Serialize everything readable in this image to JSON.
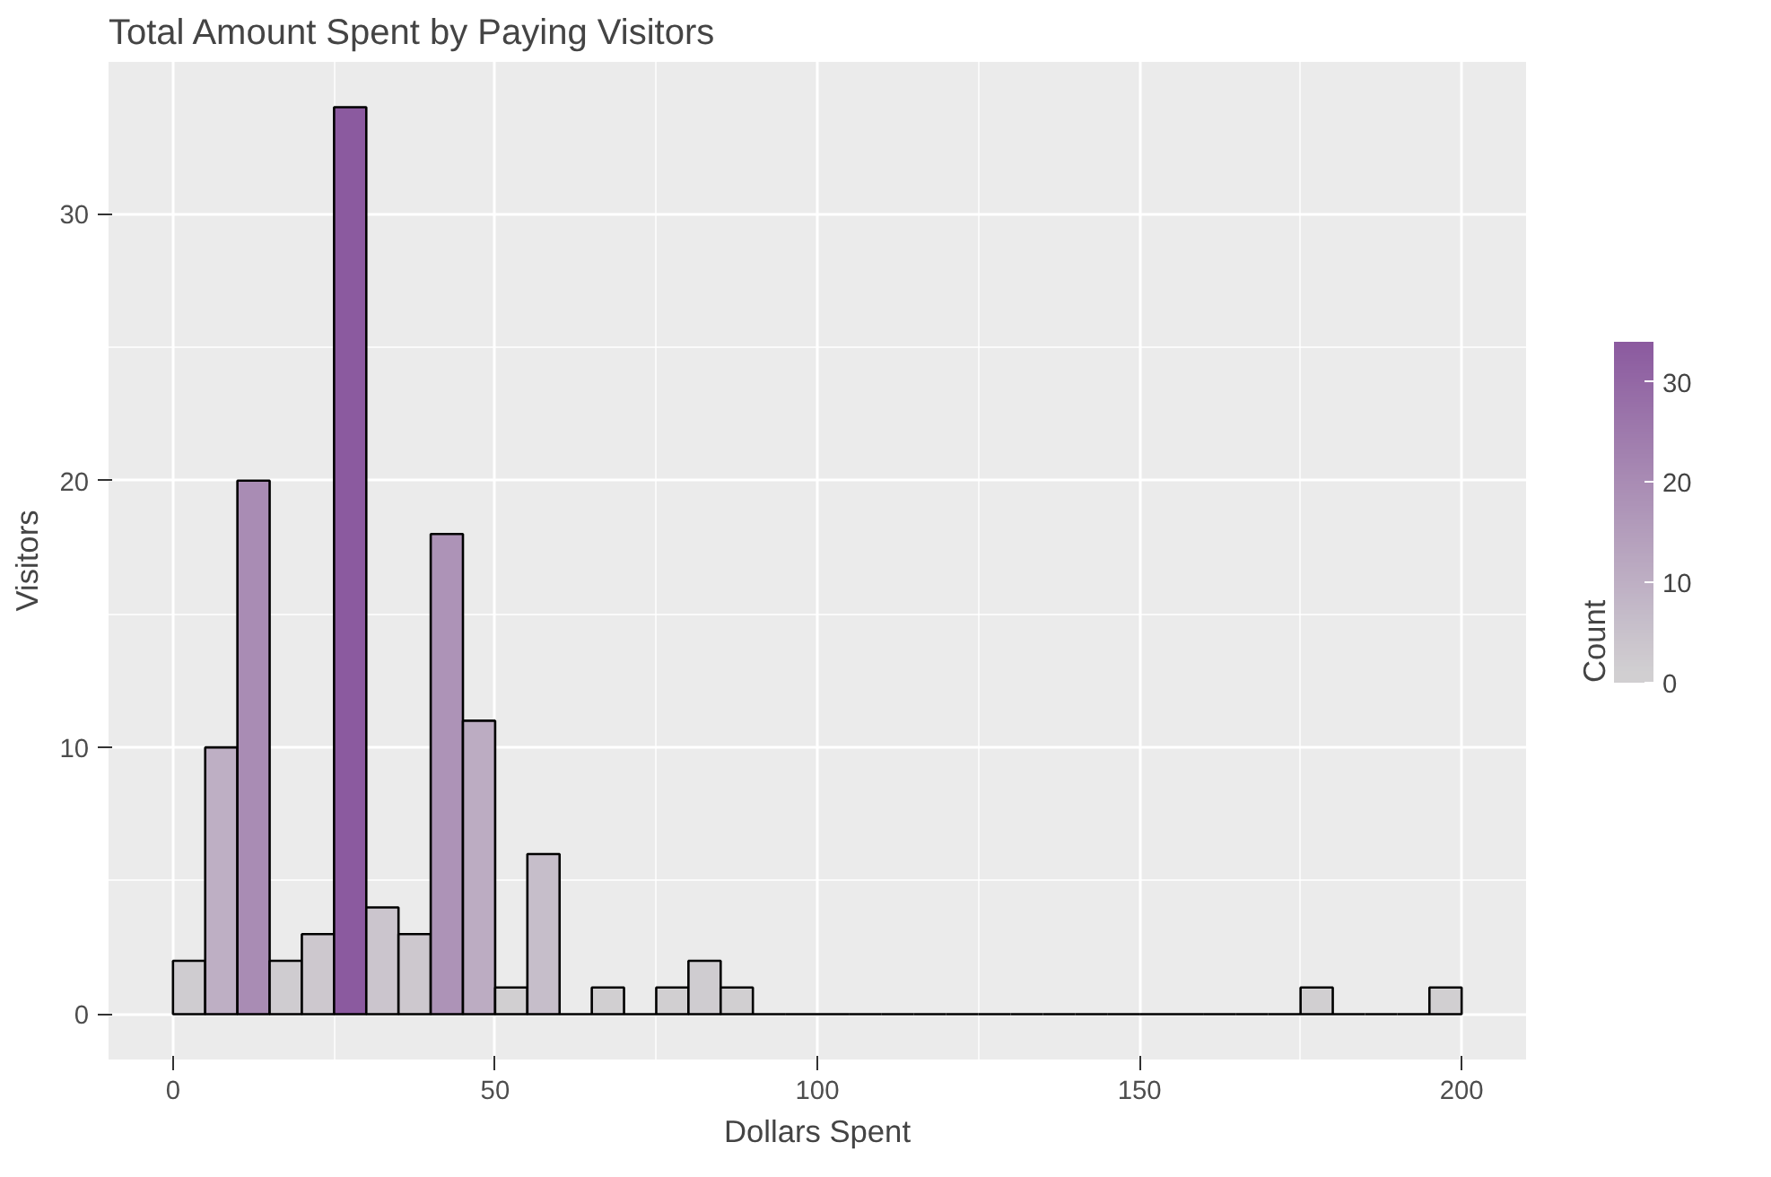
{
  "chart_data": {
    "type": "histogram",
    "title": "Total Amount Spent by Paying Visitors",
    "xlabel": "Dollars Spent",
    "ylabel": "Visitors",
    "clabel": "Count",
    "bins": [
      0,
      5,
      10,
      15,
      20,
      25,
      30,
      35,
      40,
      45,
      50,
      55,
      60,
      65,
      70,
      75,
      80,
      85,
      90,
      95,
      100,
      105,
      110,
      115,
      120,
      125,
      130,
      135,
      140,
      145,
      150,
      155,
      160,
      165,
      170,
      175,
      180,
      185,
      190,
      195,
      200
    ],
    "values": [
      2,
      10,
      20,
      2,
      3,
      34,
      4,
      3,
      18,
      11,
      1,
      6,
      0,
      1,
      0,
      1,
      2,
      1,
      0,
      0,
      0,
      0,
      0,
      0,
      0,
      0,
      0,
      0,
      0,
      0,
      0,
      0,
      0,
      0,
      0,
      1,
      0,
      0,
      0,
      1
    ],
    "colors": [
      "#cfccd0",
      "#beafc4",
      "#a98cb4",
      "#cfccd0",
      "#cdc8ce",
      "#8b5a9f",
      "#cbc5cd",
      "#cdc8ce",
      "#ad93b7",
      "#bcacc2",
      "#d1cfd1",
      "#c6beca",
      null,
      "#d1cfd1",
      null,
      "#d1cfd1",
      "#cfccd0",
      "#d1cfd1",
      null,
      null,
      null,
      null,
      null,
      null,
      null,
      null,
      null,
      null,
      null,
      null,
      null,
      null,
      null,
      null,
      null,
      "#d1cfd1",
      null,
      null,
      null,
      "#d1cfd1"
    ],
    "xlim": [
      -10,
      210
    ],
    "xticks": [
      0,
      50,
      100,
      150,
      200
    ],
    "ylim": [
      -1.7,
      35.7
    ],
    "yticks": [
      0,
      10,
      20,
      30
    ],
    "clim": [
      0,
      34
    ],
    "cticks": [
      0,
      10,
      20,
      30
    ],
    "grid": true
  }
}
